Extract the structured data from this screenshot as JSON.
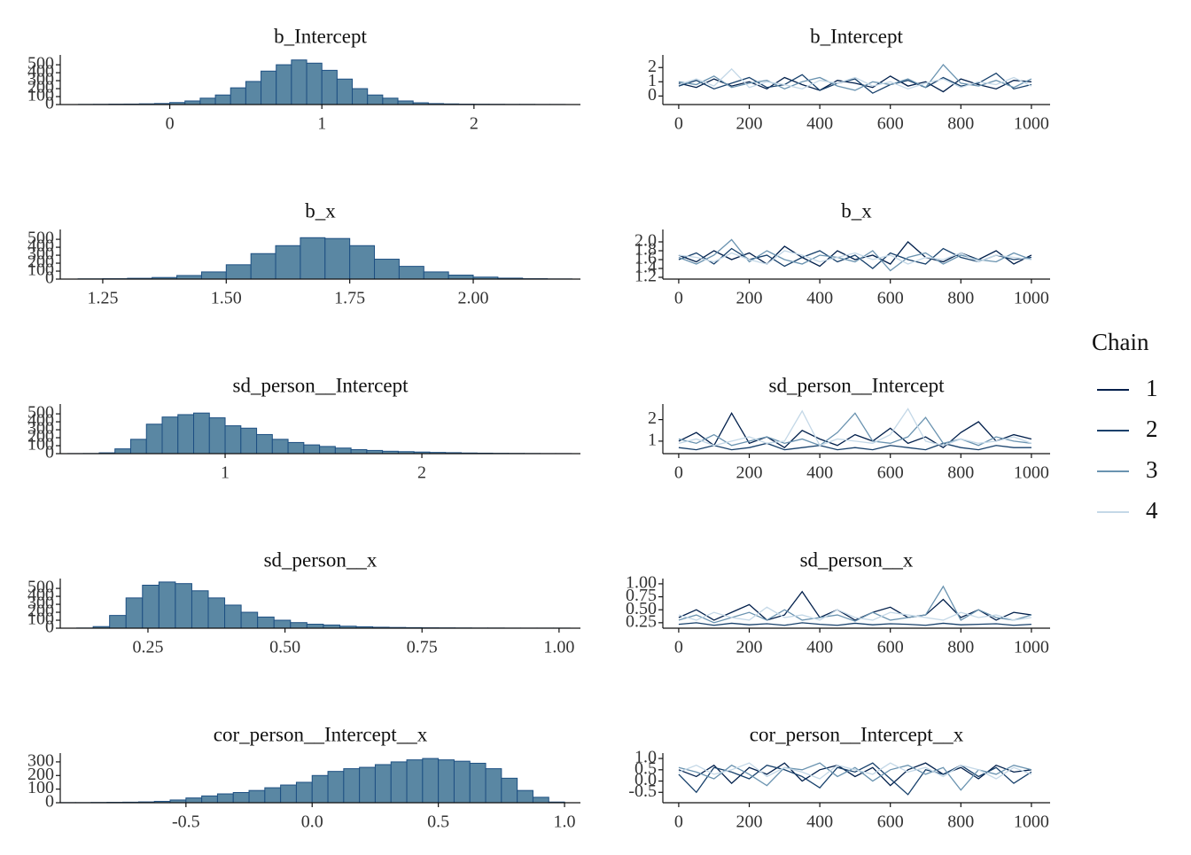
{
  "legend": {
    "title": "Chain",
    "entries": [
      {
        "name": "1",
        "color": "#011f4b"
      },
      {
        "name": "2",
        "color": "#17406b"
      },
      {
        "name": "3",
        "color": "#6a93b0"
      },
      {
        "name": "4",
        "color": "#c4d8e7"
      }
    ]
  },
  "chart_data": [
    {
      "type": "histogram",
      "title": "b_Intercept",
      "fill": "#5a87a3",
      "edge": "#1d4f82",
      "bins": [
        -0.6,
        -0.5,
        -0.4,
        -0.3,
        -0.2,
        -0.1,
        0.0,
        0.1,
        0.2,
        0.3,
        0.4,
        0.5,
        0.6,
        0.7,
        0.8,
        0.9,
        1.0,
        1.1,
        1.2,
        1.3,
        1.4,
        1.5,
        1.6,
        1.7,
        1.8,
        1.9,
        2.0,
        2.1,
        2.2,
        2.3,
        2.4,
        2.5,
        2.6
      ],
      "values": [
        2,
        3,
        5,
        6,
        9,
        13,
        25,
        45,
        80,
        120,
        210,
        290,
        420,
        500,
        560,
        520,
        430,
        320,
        200,
        120,
        80,
        45,
        22,
        12,
        8,
        5,
        4,
        3,
        2,
        2,
        1,
        1
      ],
      "xlim": [
        -0.72,
        2.7
      ],
      "xticks": [
        0,
        1,
        2
      ],
      "ylim": [
        0,
        590
      ],
      "yticks": [
        0,
        100,
        200,
        300,
        400,
        500
      ]
    },
    {
      "type": "trace",
      "title": "b_Intercept",
      "x": [
        0,
        50,
        100,
        150,
        200,
        250,
        300,
        350,
        400,
        450,
        500,
        550,
        600,
        650,
        700,
        750,
        800,
        850,
        900,
        950,
        1000
      ],
      "series": [
        {
          "values": [
            0.9,
            0.6,
            1.2,
            0.7,
            1.0,
            0.5,
            1.3,
            0.8,
            0.4,
            1.1,
            0.9,
            0.6,
            1.4,
            0.7,
            1.0,
            0.3,
            1.2,
            0.8,
            0.5,
            1.1,
            1.0
          ]
        },
        {
          "values": [
            0.7,
            1.1,
            0.5,
            0.9,
            1.3,
            0.6,
            0.8,
            1.5,
            0.4,
            0.9,
            1.2,
            0.2,
            0.8,
            1.1,
            0.6,
            1.3,
            0.7,
            0.9,
            1.6,
            0.5,
            0.8
          ]
        },
        {
          "values": [
            1.0,
            0.8,
            1.4,
            0.6,
            0.9,
            1.1,
            0.5,
            1.0,
            1.3,
            0.7,
            0.4,
            1.0,
            0.8,
            1.2,
            0.6,
            2.2,
            0.9,
            0.7,
            1.1,
            0.6,
            1.2
          ]
        },
        {
          "values": [
            0.8,
            1.2,
            0.7,
            1.9,
            0.6,
            1.0,
            0.8,
            0.5,
            1.1,
            0.9,
            1.3,
            0.7,
            1.0,
            0.5,
            0.9,
            1.2,
            0.6,
            1.0,
            0.8,
            1.3,
            0.7
          ]
        }
      ],
      "xlim": [
        -45,
        1053
      ],
      "xticks": [
        0,
        200,
        400,
        600,
        800,
        1000
      ],
      "ylim": [
        -0.6,
        2.7
      ],
      "yticks": [
        0,
        1,
        2
      ]
    },
    {
      "type": "histogram",
      "title": "b_x",
      "fill": "#5a87a3",
      "edge": "#1d4f82",
      "bins": [
        1.2,
        1.25,
        1.3,
        1.35,
        1.4,
        1.45,
        1.5,
        1.55,
        1.6,
        1.65,
        1.7,
        1.75,
        1.8,
        1.85,
        1.9,
        1.95,
        2.0,
        2.05,
        2.1,
        2.15,
        2.2
      ],
      "values": [
        3,
        5,
        10,
        20,
        45,
        90,
        180,
        320,
        420,
        520,
        510,
        420,
        250,
        160,
        90,
        50,
        25,
        12,
        5,
        2
      ],
      "xlim": [
        1.164,
        2.217
      ],
      "xticks": [
        1.25,
        {
          "value": 1.5,
          "label": "1.50"
        },
        1.75,
        {
          "value": 2,
          "label": "2.00"
        }
      ],
      "ylim": [
        0,
        590
      ],
      "yticks": [
        0,
        100,
        200,
        300,
        400,
        500
      ]
    },
    {
      "type": "trace",
      "title": "b_x",
      "x": [
        0,
        50,
        100,
        150,
        200,
        250,
        300,
        350,
        400,
        450,
        500,
        550,
        600,
        650,
        700,
        750,
        800,
        850,
        900,
        950,
        1000
      ],
      "series": [
        {
          "values": [
            1.7,
            1.55,
            1.8,
            1.6,
            1.75,
            1.5,
            1.9,
            1.65,
            1.45,
            1.8,
            1.6,
            1.7,
            1.5,
            2.0,
            1.65,
            1.55,
            1.75,
            1.6,
            1.8,
            1.5,
            1.7
          ]
        },
        {
          "values": [
            1.6,
            1.75,
            1.5,
            1.85,
            1.6,
            1.7,
            1.45,
            1.65,
            1.8,
            1.55,
            1.7,
            1.4,
            1.75,
            1.6,
            1.5,
            1.85,
            1.65,
            1.55,
            1.7,
            1.6,
            1.65
          ]
        },
        {
          "values": [
            1.65,
            1.5,
            1.7,
            2.05,
            1.55,
            1.8,
            1.6,
            1.5,
            1.7,
            1.65,
            1.55,
            1.8,
            1.35,
            1.65,
            1.75,
            1.5,
            1.7,
            1.6,
            1.55,
            1.75,
            1.6
          ]
        },
        {
          "values": [
            1.7,
            1.65,
            1.55,
            1.75,
            1.6,
            1.5,
            1.8,
            1.7,
            1.55,
            1.65,
            1.75,
            1.6,
            1.7,
            1.5,
            1.65,
            1.6,
            1.75,
            1.55,
            1.7,
            1.65,
            1.6
          ]
        }
      ],
      "xlim": [
        -45,
        1053
      ],
      "xticks": [
        0,
        200,
        400,
        600,
        800,
        1000
      ],
      "ylim": [
        1.16,
        2.22
      ],
      "yticks": [
        1.2,
        1.4,
        1.6,
        1.8,
        {
          "value": 2,
          "label": "2.0"
        }
      ]
    },
    {
      "type": "histogram",
      "title": "sd_person__Intercept",
      "fill": "#5a87a3",
      "edge": "#1d4f82",
      "bins": [
        0.2,
        0.28,
        0.36,
        0.44,
        0.52,
        0.6,
        0.68,
        0.76,
        0.84,
        0.92,
        1.0,
        1.08,
        1.16,
        1.24,
        1.32,
        1.4,
        1.48,
        1.56,
        1.64,
        1.72,
        1.8,
        1.88,
        1.96,
        2.04,
        2.12,
        2.2,
        2.28,
        2.36,
        2.44,
        2.52,
        2.6,
        2.68,
        2.76
      ],
      "values": [
        1,
        2,
        10,
        60,
        180,
        370,
        460,
        490,
        510,
        450,
        350,
        320,
        240,
        180,
        140,
        110,
        90,
        70,
        50,
        40,
        30,
        25,
        20,
        15,
        12,
        8,
        6,
        4,
        3,
        2,
        1,
        1
      ],
      "xlim": [
        0.162,
        2.806
      ],
      "xticks": [
        1,
        2
      ],
      "ylim": [
        0,
        590
      ],
      "yticks": [
        0,
        100,
        200,
        300,
        400,
        500
      ]
    },
    {
      "type": "trace",
      "title": "sd_person__Intercept",
      "x": [
        0,
        50,
        100,
        150,
        200,
        250,
        300,
        350,
        400,
        450,
        500,
        550,
        600,
        650,
        700,
        750,
        800,
        850,
        900,
        950,
        1000
      ],
      "series": [
        {
          "values": [
            1.0,
            1.4,
            0.8,
            2.3,
            0.9,
            1.2,
            0.7,
            1.5,
            1.1,
            0.8,
            1.3,
            1.0,
            1.6,
            0.9,
            1.2,
            0.7,
            1.4,
            1.9,
            1.0,
            1.3,
            1.1
          ]
        },
        {
          "values": [
            0.7,
            0.6,
            0.8,
            0.6,
            0.7,
            0.9,
            0.6,
            0.7,
            0.8,
            0.6,
            0.7,
            0.6,
            0.8,
            0.7,
            0.6,
            0.9,
            0.7,
            0.6,
            0.8,
            0.7,
            0.7
          ]
        },
        {
          "values": [
            1.1,
            0.9,
            1.3,
            0.8,
            1.0,
            1.2,
            0.9,
            1.1,
            0.8,
            1.4,
            2.3,
            1.0,
            0.9,
            1.2,
            2.1,
            0.9,
            1.1,
            0.8,
            1.2,
            1.0,
            0.9
          ]
        },
        {
          "values": [
            0.9,
            1.1,
            0.8,
            1.0,
            1.2,
            0.9,
            1.0,
            2.4,
            0.8,
            1.1,
            1.0,
            0.9,
            1.3,
            2.5,
            1.0,
            0.8,
            1.1,
            0.9,
            1.0,
            1.2,
            0.9
          ]
        }
      ],
      "xlim": [
        -45,
        1053
      ],
      "xticks": [
        0,
        200,
        400,
        600,
        800,
        1000
      ],
      "ylim": [
        0.42,
        2.6
      ],
      "yticks": [
        1,
        2
      ]
    },
    {
      "type": "histogram",
      "title": "sd_person__x",
      "fill": "#5a87a3",
      "edge": "#1d4f82",
      "bins": [
        0.12,
        0.15,
        0.18,
        0.21,
        0.24,
        0.27,
        0.3,
        0.33,
        0.36,
        0.39,
        0.42,
        0.45,
        0.48,
        0.51,
        0.54,
        0.57,
        0.6,
        0.63,
        0.66,
        0.69,
        0.72,
        0.75,
        0.78,
        0.81,
        0.84,
        0.87,
        0.9,
        0.93,
        0.96,
        0.99,
        1.02
      ],
      "values": [
        2,
        20,
        160,
        380,
        540,
        580,
        560,
        470,
        380,
        290,
        200,
        140,
        100,
        70,
        50,
        40,
        25,
        18,
        12,
        9,
        7,
        5,
        4,
        3,
        2,
        2,
        1,
        1,
        1,
        1
      ],
      "xlim": [
        0.09,
        1.039
      ],
      "xticks": [
        0.25,
        {
          "value": 0.5,
          "label": "0.50"
        },
        0.75,
        {
          "value": 1,
          "label": "1.00"
        }
      ],
      "ylim": [
        0,
        590
      ],
      "yticks": [
        0,
        100,
        200,
        300,
        400,
        500
      ]
    },
    {
      "type": "trace",
      "title": "sd_person__x",
      "x": [
        0,
        50,
        100,
        150,
        200,
        250,
        300,
        350,
        400,
        450,
        500,
        550,
        600,
        650,
        700,
        750,
        800,
        850,
        900,
        950,
        1000
      ],
      "series": [
        {
          "values": [
            0.35,
            0.5,
            0.3,
            0.45,
            0.6,
            0.3,
            0.4,
            0.85,
            0.35,
            0.5,
            0.3,
            0.45,
            0.55,
            0.35,
            0.4,
            0.7,
            0.35,
            0.5,
            0.3,
            0.45,
            0.4
          ]
        },
        {
          "values": [
            0.22,
            0.25,
            0.2,
            0.24,
            0.21,
            0.23,
            0.2,
            0.25,
            0.22,
            0.2,
            0.24,
            0.21,
            0.23,
            0.22,
            0.2,
            0.24,
            0.21,
            0.22,
            0.23,
            0.2,
            0.22
          ]
        },
        {
          "values": [
            0.3,
            0.4,
            0.25,
            0.35,
            0.45,
            0.3,
            0.5,
            0.3,
            0.35,
            0.4,
            0.28,
            0.45,
            0.3,
            0.35,
            0.4,
            0.95,
            0.3,
            0.5,
            0.35,
            0.3,
            0.4
          ]
        },
        {
          "values": [
            0.4,
            0.3,
            0.45,
            0.35,
            0.3,
            0.55,
            0.35,
            0.4,
            0.3,
            0.5,
            0.35,
            0.3,
            0.45,
            0.4,
            0.35,
            0.3,
            0.45,
            0.35,
            0.4,
            0.3,
            0.35
          ]
        }
      ],
      "xlim": [
        -45,
        1053
      ],
      "xticks": [
        0,
        200,
        400,
        600,
        800,
        1000
      ],
      "ylim": [
        0.145,
        1.05
      ],
      "yticks": [
        0.25,
        {
          "value": 0.5,
          "label": "0.50"
        },
        0.75,
        {
          "value": 1,
          "label": "1.00"
        }
      ]
    },
    {
      "type": "histogram",
      "title": "cor_person__Intercept__x",
      "fill": "#5a87a3",
      "edge": "#1d4f82",
      "bins": [
        -1,
        -0.9375,
        -0.875,
        -0.8125,
        -0.75,
        -0.6875,
        -0.625,
        -0.5625,
        -0.5,
        -0.4375,
        -0.375,
        -0.3125,
        -0.25,
        -0.1875,
        -0.125,
        -0.0625,
        0,
        0.0625,
        0.125,
        0.1875,
        0.25,
        0.3125,
        0.375,
        0.4375,
        0.5,
        0.5625,
        0.625,
        0.6875,
        0.75,
        0.8125,
        0.875,
        0.9375,
        1
      ],
      "values": [
        1,
        1,
        2,
        3,
        4,
        6,
        10,
        20,
        35,
        50,
        65,
        75,
        90,
        110,
        130,
        150,
        200,
        230,
        250,
        260,
        280,
        300,
        315,
        325,
        315,
        305,
        290,
        250,
        180,
        90,
        40,
        5
      ],
      "xlim": [
        -0.998,
        1.063
      ],
      "xticks": [
        -0.5,
        {
          "value": 0,
          "label": "0.0"
        },
        0.5,
        {
          "value": 1,
          "label": "1.0"
        }
      ],
      "ylim": [
        0,
        345
      ],
      "yticks": [
        0,
        100,
        200,
        300
      ]
    },
    {
      "type": "trace",
      "title": "cor_person__Intercept__x",
      "x": [
        0,
        50,
        100,
        150,
        200,
        250,
        300,
        350,
        400,
        450,
        500,
        550,
        600,
        650,
        700,
        750,
        800,
        850,
        900,
        950,
        1000
      ],
      "series": [
        {
          "values": [
            0.5,
            0.2,
            0.7,
            -0.1,
            0.6,
            0.3,
            0.8,
            0.0,
            0.5,
            0.7,
            0.2,
            0.6,
            -0.2,
            0.5,
            0.8,
            0.3,
            0.6,
            0.1,
            0.7,
            0.4,
            0.5
          ]
        },
        {
          "values": [
            0.3,
            -0.5,
            0.6,
            0.4,
            0.1,
            0.7,
            0.5,
            0.2,
            -0.3,
            0.6,
            0.4,
            0.8,
            0.1,
            -0.6,
            0.5,
            0.3,
            0.7,
            0.2,
            0.6,
            -0.1,
            0.4
          ]
        },
        {
          "values": [
            0.6,
            0.4,
            0.1,
            0.7,
            0.3,
            -0.2,
            0.6,
            0.5,
            0.8,
            0.2,
            0.6,
            0.0,
            0.5,
            0.7,
            0.3,
            0.6,
            -0.4,
            0.5,
            0.3,
            0.7,
            0.5
          ]
        },
        {
          "values": [
            0.4,
            0.7,
            0.3,
            0.5,
            0.8,
            0.2,
            0.6,
            0.4,
            0.1,
            0.7,
            0.5,
            0.3,
            0.8,
            0.4,
            0.6,
            0.2,
            0.7,
            0.5,
            0.1,
            0.6,
            0.3
          ]
        }
      ],
      "xlim": [
        -45,
        1053
      ],
      "xticks": [
        0,
        200,
        400,
        600,
        800,
        1000
      ],
      "ylim": [
        -0.96,
        1.12
      ],
      "yticks": [
        -0.5,
        {
          "value": 0,
          "label": "0.0"
        },
        0.5,
        {
          "value": 1,
          "label": "1.0"
        }
      ]
    }
  ]
}
